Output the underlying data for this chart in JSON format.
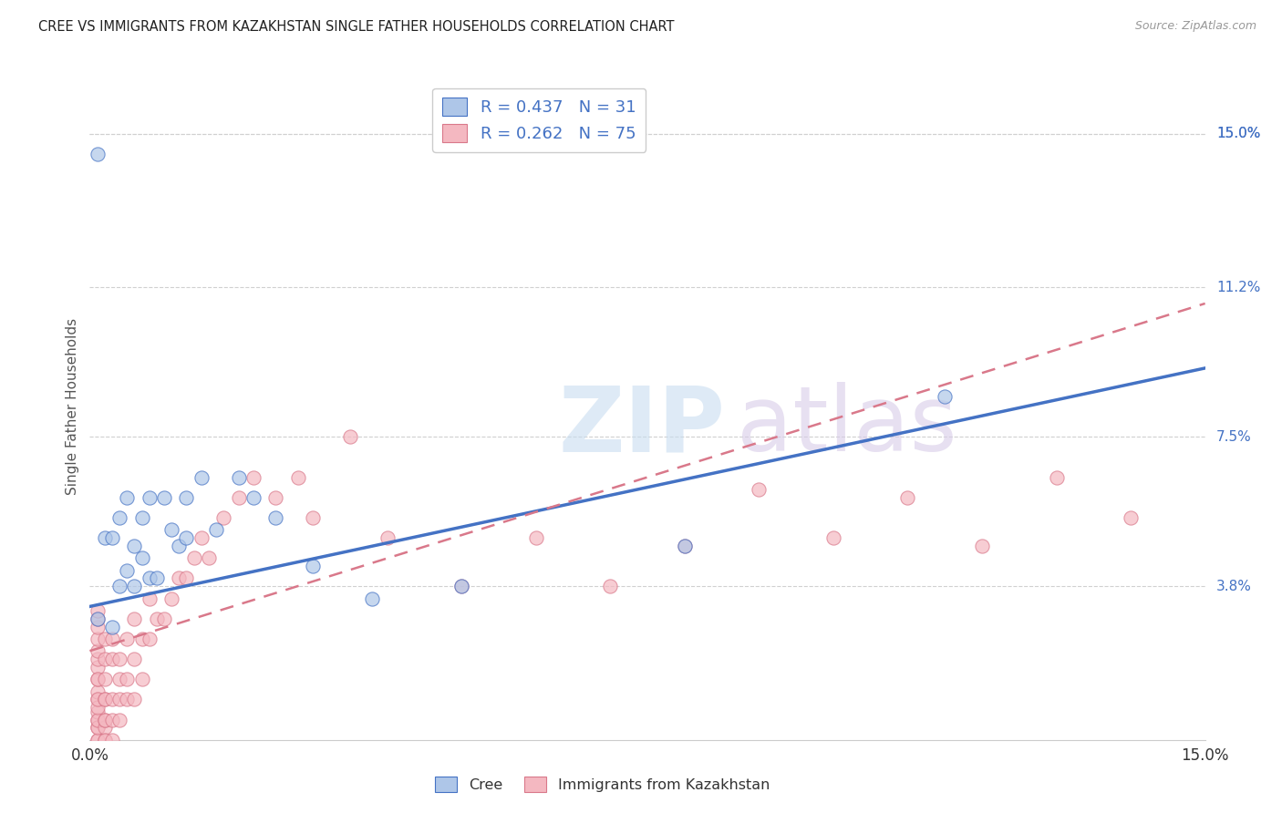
{
  "title": "CREE VS IMMIGRANTS FROM KAZAKHSTAN SINGLE FATHER HOUSEHOLDS CORRELATION CHART",
  "source": "Source: ZipAtlas.com",
  "ylabel": "Single Father Households",
  "xlim": [
    0.0,
    0.15
  ],
  "ylim": [
    0.0,
    0.165
  ],
  "ytick_labels_right": [
    "15.0%",
    "11.2%",
    "7.5%",
    "3.8%"
  ],
  "ytick_positions_right": [
    0.15,
    0.112,
    0.075,
    0.038
  ],
  "legend_label1": "R = 0.437   N = 31",
  "legend_label2": "R = 0.262   N = 75",
  "dot_color_cree": "#aec6e8",
  "dot_color_kaz": "#f4b8c1",
  "line_color_cree": "#4472c4",
  "line_color_kaz": "#d9788a",
  "background_color": "#ffffff",
  "grid_color": "#d0d0d0",
  "cree_line_x": [
    0.0,
    0.15
  ],
  "cree_line_y": [
    0.033,
    0.092
  ],
  "kaz_line_x": [
    0.0,
    0.15
  ],
  "kaz_line_y": [
    0.022,
    0.108
  ],
  "cree_scatter_x": [
    0.001,
    0.001,
    0.002,
    0.003,
    0.003,
    0.004,
    0.004,
    0.005,
    0.005,
    0.006,
    0.006,
    0.007,
    0.007,
    0.008,
    0.008,
    0.009,
    0.01,
    0.011,
    0.012,
    0.013,
    0.013,
    0.015,
    0.017,
    0.02,
    0.022,
    0.025,
    0.03,
    0.038,
    0.05,
    0.08,
    0.115
  ],
  "cree_scatter_y": [
    0.145,
    0.03,
    0.05,
    0.028,
    0.05,
    0.055,
    0.038,
    0.06,
    0.042,
    0.038,
    0.048,
    0.055,
    0.045,
    0.06,
    0.04,
    0.04,
    0.06,
    0.052,
    0.048,
    0.06,
    0.05,
    0.065,
    0.052,
    0.065,
    0.06,
    0.055,
    0.043,
    0.035,
    0.038,
    0.048,
    0.085
  ],
  "kaz_scatter_x": [
    0.001,
    0.001,
    0.001,
    0.001,
    0.001,
    0.001,
    0.001,
    0.001,
    0.001,
    0.001,
    0.001,
    0.001,
    0.001,
    0.001,
    0.001,
    0.001,
    0.001,
    0.001,
    0.001,
    0.001,
    0.002,
    0.002,
    0.002,
    0.002,
    0.002,
    0.002,
    0.002,
    0.002,
    0.002,
    0.002,
    0.003,
    0.003,
    0.003,
    0.003,
    0.003,
    0.004,
    0.004,
    0.004,
    0.004,
    0.005,
    0.005,
    0.005,
    0.006,
    0.006,
    0.006,
    0.007,
    0.007,
    0.008,
    0.008,
    0.009,
    0.01,
    0.011,
    0.012,
    0.013,
    0.014,
    0.015,
    0.016,
    0.018,
    0.02,
    0.022,
    0.025,
    0.028,
    0.03,
    0.035,
    0.04,
    0.05,
    0.06,
    0.07,
    0.08,
    0.09,
    0.1,
    0.11,
    0.12,
    0.13,
    0.14
  ],
  "kaz_scatter_y": [
    0.0,
    0.003,
    0.005,
    0.007,
    0.01,
    0.012,
    0.015,
    0.018,
    0.02,
    0.022,
    0.025,
    0.028,
    0.03,
    0.032,
    0.0,
    0.003,
    0.005,
    0.008,
    0.01,
    0.015,
    0.0,
    0.003,
    0.005,
    0.01,
    0.015,
    0.02,
    0.025,
    0.0,
    0.005,
    0.01,
    0.0,
    0.005,
    0.01,
    0.02,
    0.025,
    0.005,
    0.01,
    0.015,
    0.02,
    0.01,
    0.015,
    0.025,
    0.01,
    0.02,
    0.03,
    0.015,
    0.025,
    0.025,
    0.035,
    0.03,
    0.03,
    0.035,
    0.04,
    0.04,
    0.045,
    0.05,
    0.045,
    0.055,
    0.06,
    0.065,
    0.06,
    0.065,
    0.055,
    0.075,
    0.05,
    0.038,
    0.05,
    0.038,
    0.048,
    0.062,
    0.05,
    0.06,
    0.048,
    0.065,
    0.055
  ]
}
